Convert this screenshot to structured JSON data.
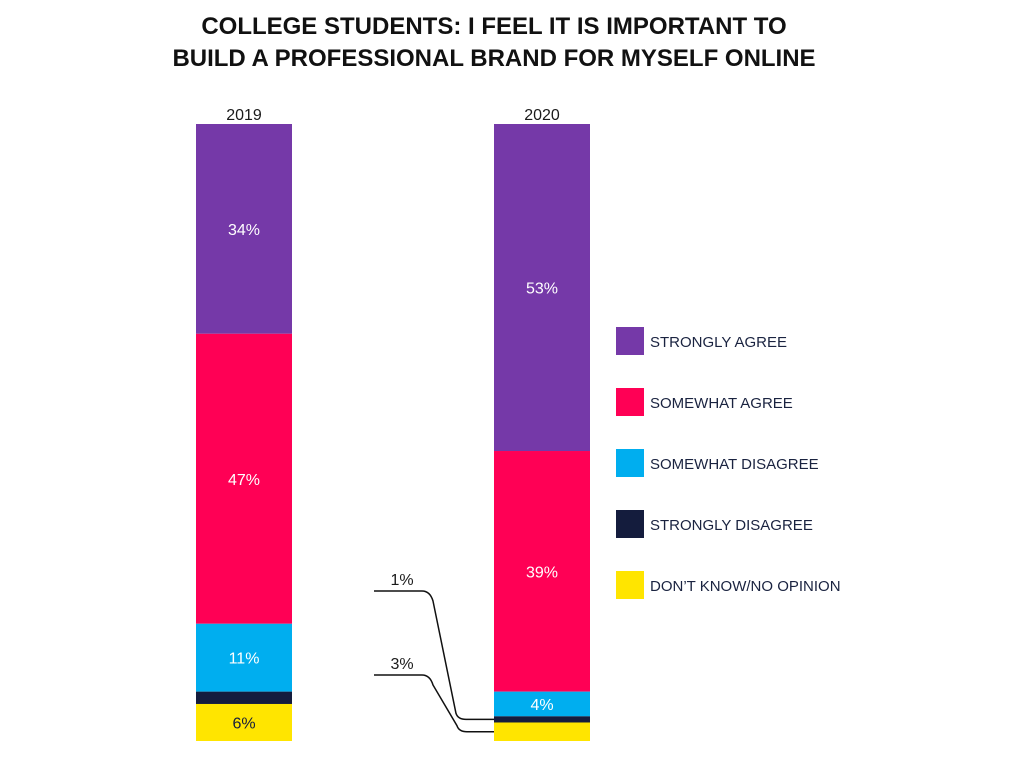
{
  "chart_data": {
    "type": "bar",
    "stacked": true,
    "title_lines": [
      "COLLEGE STUDENTS: I FEEL IT IS IMPORTANT TO",
      "BUILD A PROFESSIONAL BRAND FOR MYSELF ONLINE"
    ],
    "categories": [
      "2019",
      "2020"
    ],
    "series": [
      {
        "name": "STRONGLY AGREE",
        "color": "#7539a8",
        "values": [
          34,
          53
        ],
        "labels": [
          "34%",
          "53%"
        ]
      },
      {
        "name": "SOMEWHAT AGREE",
        "color": "#ff0055",
        "values": [
          47,
          39
        ],
        "labels": [
          "47%",
          "39%"
        ]
      },
      {
        "name": "SOMEWHAT DISAGREE",
        "color": "#00aeef",
        "values": [
          11,
          4
        ],
        "labels": [
          "11%",
          "4%"
        ]
      },
      {
        "name": "STRONGLY DISAGREE",
        "color": "#141c3d",
        "values": [
          2,
          1
        ],
        "labels": [
          "2%",
          "1%"
        ]
      },
      {
        "name": "DON’T KNOW/NO OPINION",
        "color": "#ffe500",
        "values": [
          6,
          3
        ],
        "labels": [
          "6%",
          "3%"
        ]
      }
    ],
    "ylim": [
      0,
      100
    ],
    "legend_position": "right",
    "grid": false,
    "callouts": [
      {
        "series_index": 3,
        "category_index": 1,
        "text": "1%"
      },
      {
        "series_index": 4,
        "category_index": 1,
        "text": "3%"
      }
    ]
  }
}
